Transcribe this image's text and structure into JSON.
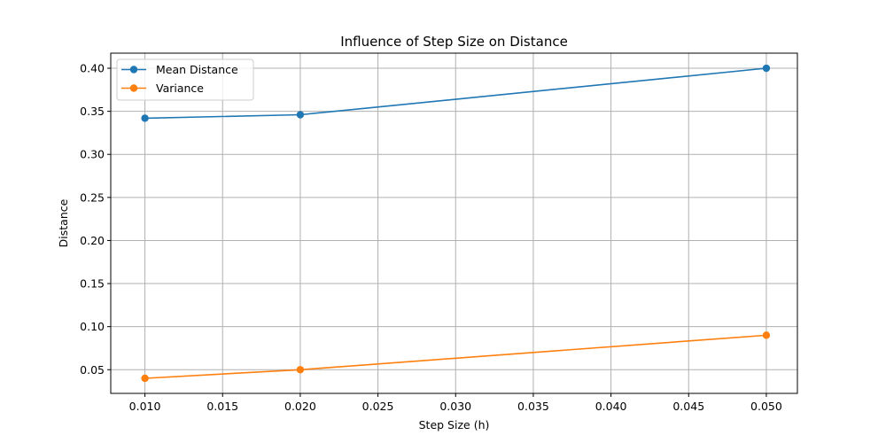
{
  "chart_data": {
    "type": "line",
    "title": "Influence of Step Size on Distance",
    "xlabel": "Step Size (h)",
    "ylabel": "Distance",
    "x": [
      0.01,
      0.02,
      0.05
    ],
    "xlim": [
      0.0078,
      0.052
    ],
    "ylim": [
      0.0225,
      0.4175
    ],
    "xticks": [
      0.01,
      0.015,
      0.02,
      0.025,
      0.03,
      0.035,
      0.04,
      0.045,
      0.05
    ],
    "xtick_labels": [
      "0.010",
      "0.015",
      "0.020",
      "0.025",
      "0.030",
      "0.035",
      "0.040",
      "0.045",
      "0.050"
    ],
    "yticks": [
      0.05,
      0.1,
      0.15,
      0.2,
      0.25,
      0.3,
      0.35,
      0.4
    ],
    "ytick_labels": [
      "0.05",
      "0.10",
      "0.15",
      "0.20",
      "0.25",
      "0.30",
      "0.35",
      "0.40"
    ],
    "grid": true,
    "legend_position": "top-left",
    "series": [
      {
        "name": "Mean Distance",
        "values": [
          0.342,
          0.346,
          0.4
        ],
        "color": "#1f77b4",
        "marker": "circle"
      },
      {
        "name": "Variance",
        "values": [
          0.04,
          0.05,
          0.09
        ],
        "color": "#ff7f0e",
        "marker": "circle"
      }
    ]
  }
}
